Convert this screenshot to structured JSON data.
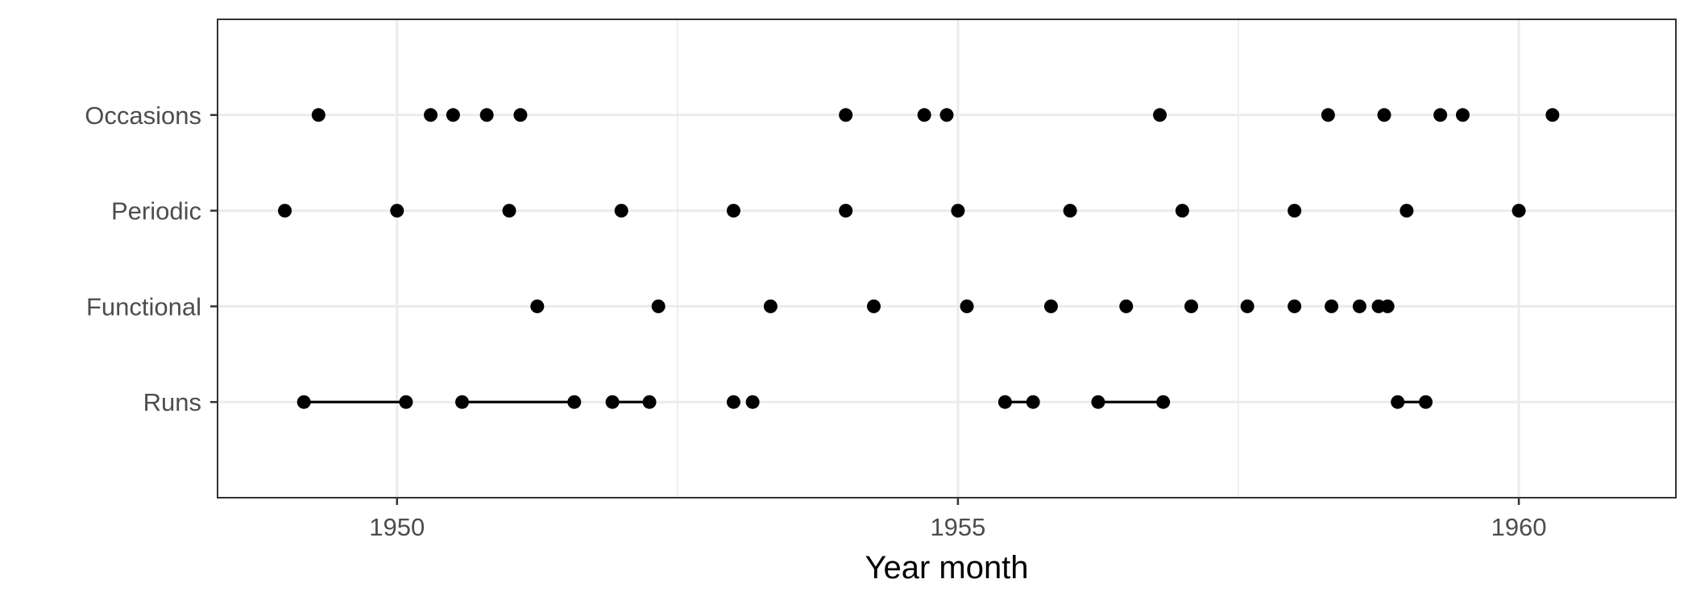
{
  "chart_data": {
    "type": "scatter",
    "title": "",
    "xlabel": "Year month",
    "ylabel": "",
    "xlim": [
      1948.4,
      1961.4
    ],
    "x_ticks": [
      "1950",
      "1955",
      "1960"
    ],
    "categories": [
      "Runs",
      "Functional",
      "Periodic",
      "Occasions"
    ],
    "grid": true,
    "legend": "none",
    "colors": {
      "point": "#000000",
      "grid": "#ebebeb",
      "panel_border": "#333333",
      "tick_text": "#4d4d4d"
    },
    "series": [
      {
        "category": "Occasions",
        "x": [
          1949.3,
          1950.3,
          1950.5,
          1950.8,
          1951.1,
          1954.0,
          1954.7,
          1954.9,
          1956.8,
          1958.3,
          1958.8,
          1959.3,
          1959.5,
          1960.3
        ]
      },
      {
        "category": "Periodic",
        "x": [
          1949.0,
          1950.0,
          1951.0,
          1952.0,
          1953.0,
          1954.0,
          1955.0,
          1956.0,
          1957.0,
          1958.0,
          1959.0,
          1960.0
        ]
      },
      {
        "category": "Functional",
        "x": [
          1951.25,
          1952.33,
          1953.33,
          1954.25,
          1955.08,
          1955.83,
          1956.5,
          1957.08,
          1957.58,
          1958.0,
          1958.33,
          1958.58,
          1958.75,
          1958.83
        ]
      },
      {
        "category": "Runs",
        "x": [
          1949.17,
          1950.08,
          1950.58,
          1951.58,
          1951.92,
          1952.25,
          1953.0,
          1953.17,
          1955.42,
          1955.67,
          1956.25,
          1956.83,
          1958.92,
          1959.17
        ],
        "segments": [
          [
            1949.17,
            1950.08
          ],
          [
            1950.58,
            1951.58
          ],
          [
            1951.92,
            1952.25
          ],
          [
            1955.42,
            1955.67
          ],
          [
            1956.25,
            1956.83
          ],
          [
            1958.92,
            1959.17
          ]
        ]
      }
    ]
  }
}
